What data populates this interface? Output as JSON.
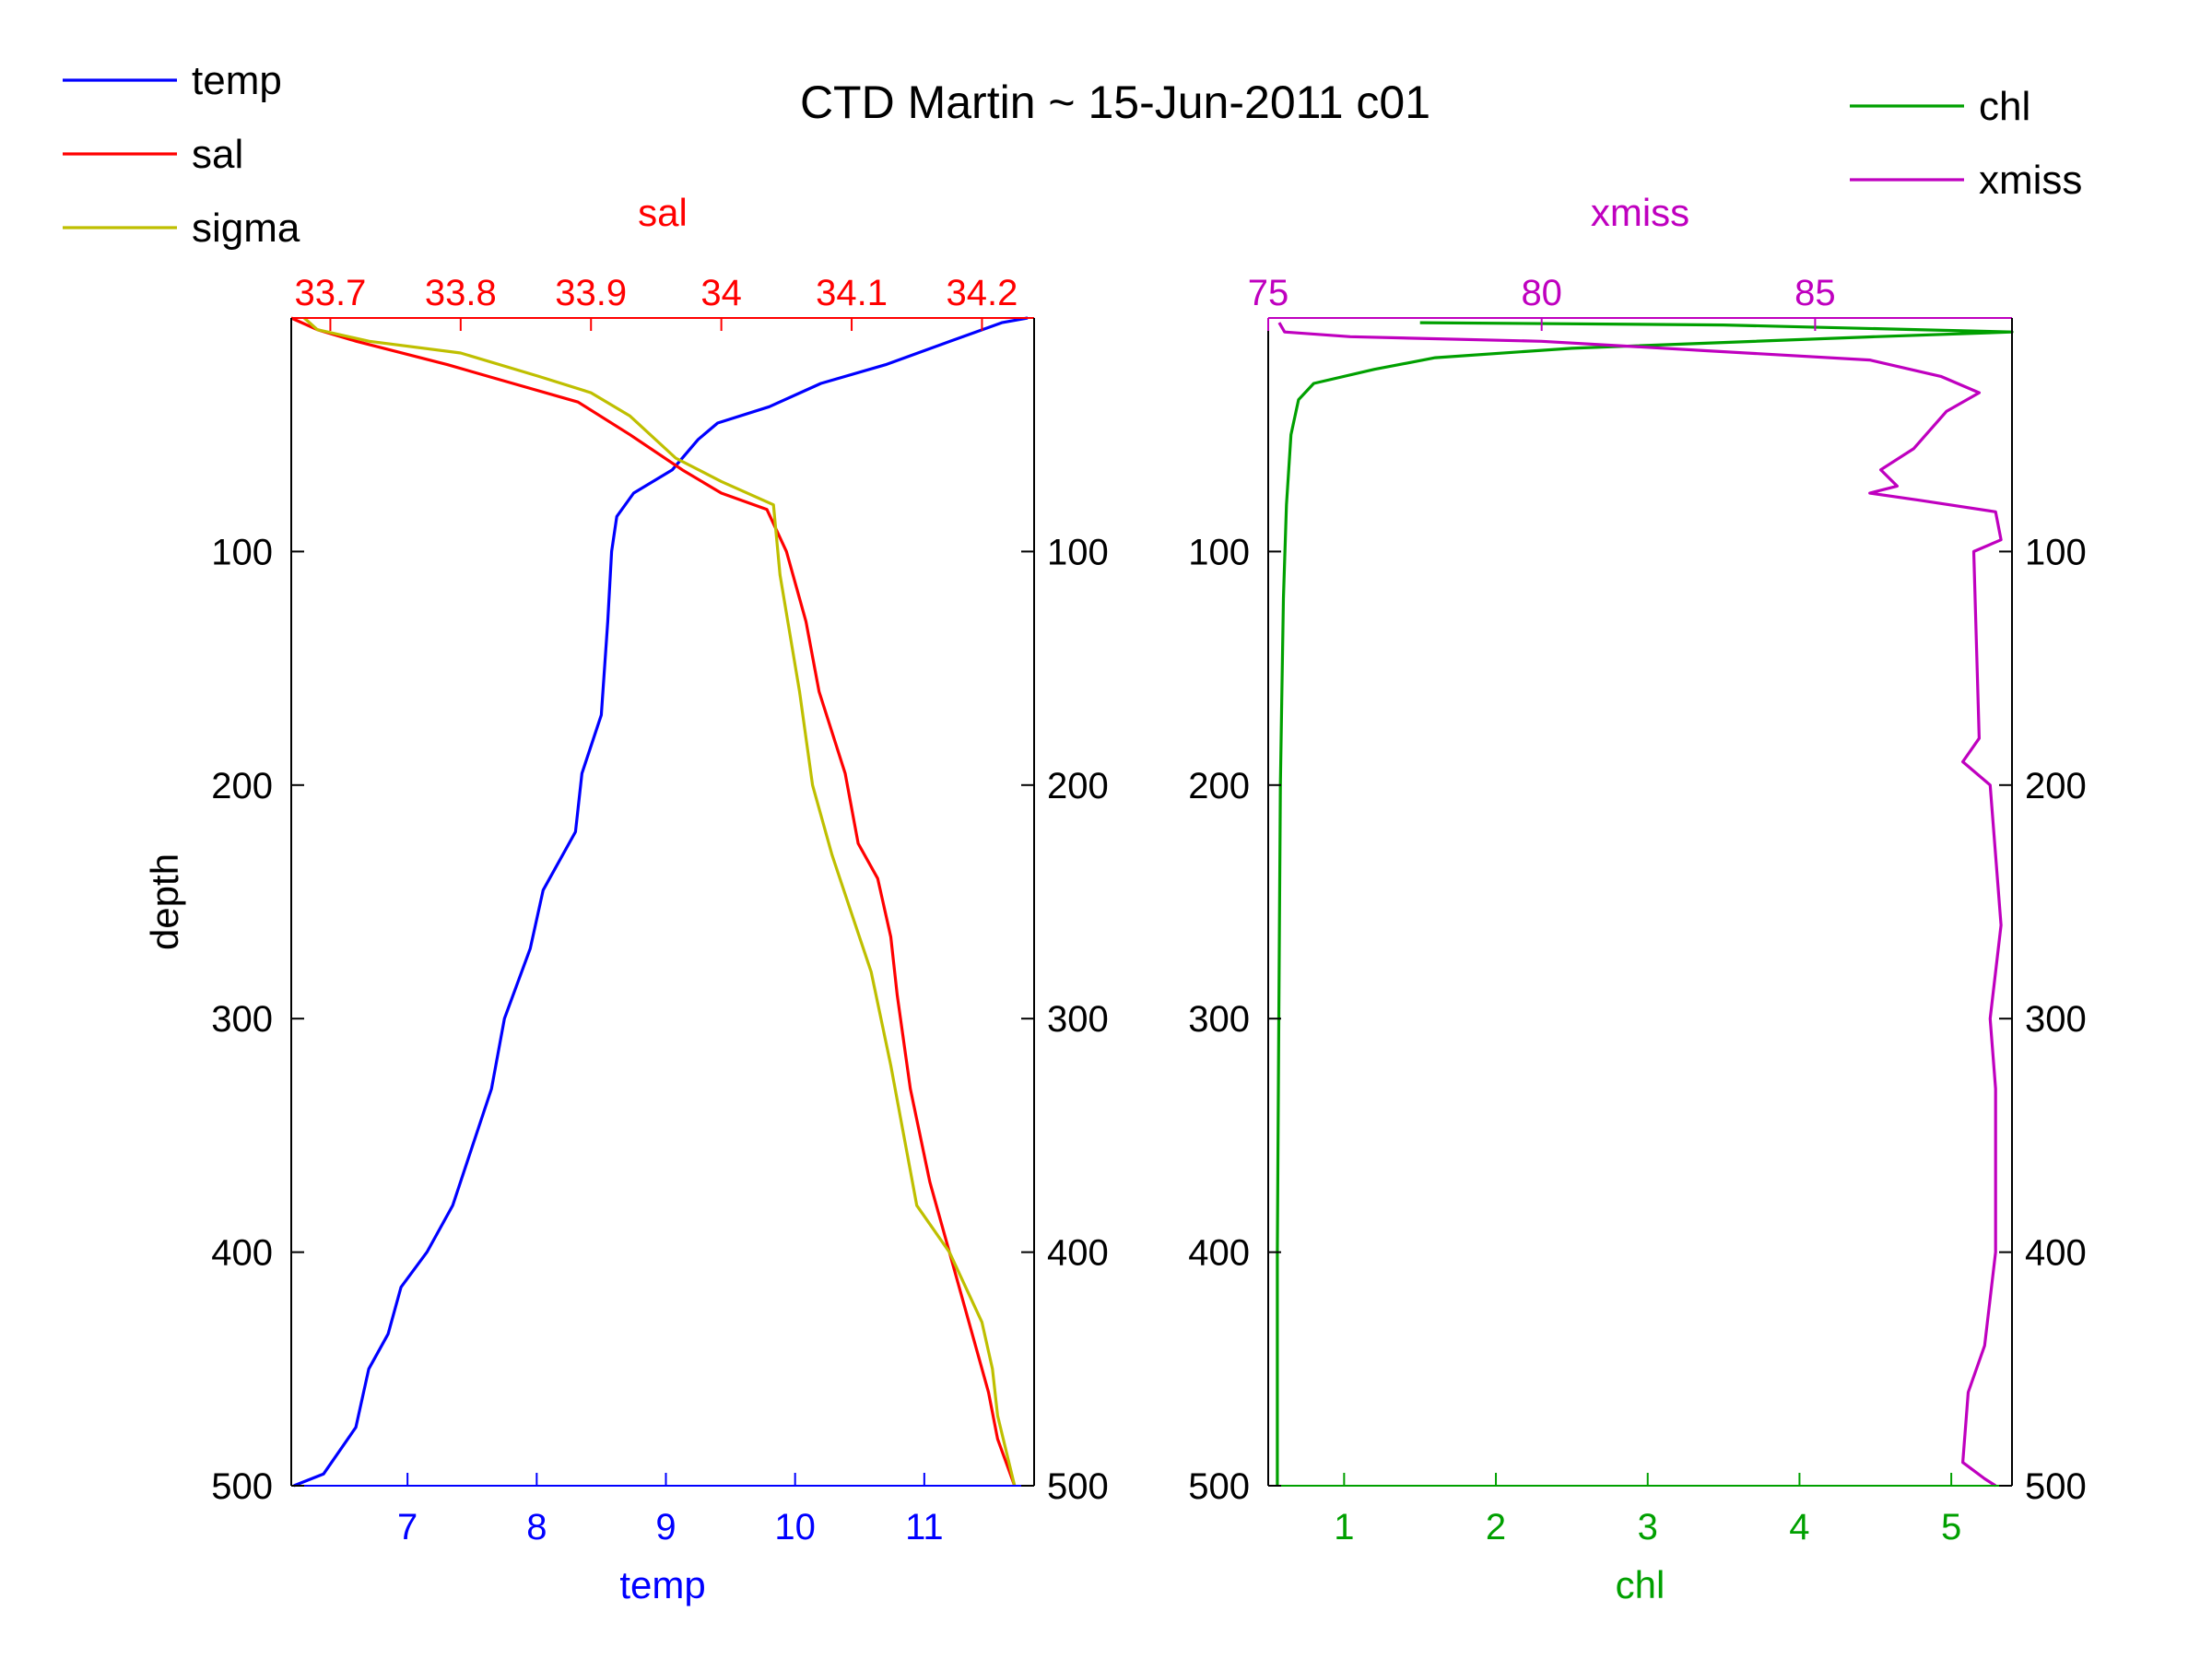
{
  "title": "CTD Martin ~ 15-Jun-2011 c01",
  "colors": {
    "temp": "#0000ff",
    "sal": "#ff0000",
    "sigma": "#bfbf00",
    "chl": "#00a000",
    "xmiss": "#bf00bf",
    "axis": "#000000"
  },
  "legend_left": [
    {
      "key": "temp",
      "label": "temp"
    },
    {
      "key": "sal",
      "label": "sal"
    },
    {
      "key": "sigma",
      "label": "sigma"
    }
  ],
  "legend_right": [
    {
      "key": "chl",
      "label": "chl"
    },
    {
      "key": "xmiss",
      "label": "xmiss"
    }
  ],
  "chart_data": [
    {
      "type": "line",
      "title": "CTD Martin ~ 15-Jun-2011 c01",
      "ylabel": "depth",
      "ylim": [
        0,
        500
      ],
      "y_reversed": true,
      "yticks": [
        100,
        200,
        300,
        400,
        500
      ],
      "bottom_axis": {
        "label": "temp",
        "lim": [
          6.1,
          11.85
        ],
        "ticks": [
          7,
          8,
          9,
          10,
          11
        ]
      },
      "top_axis": {
        "label": "sal",
        "lim": [
          33.67,
          34.24
        ],
        "ticks": [
          33.7,
          33.8,
          33.9,
          34,
          34.1,
          34.2
        ]
      },
      "series": [
        {
          "name": "temp",
          "axis": "bottom",
          "points": [
            [
              11.8,
              0
            ],
            [
              11.6,
              2
            ],
            [
              11.2,
              10
            ],
            [
              10.7,
              20
            ],
            [
              10.2,
              28
            ],
            [
              9.8,
              38
            ],
            [
              9.4,
              45
            ],
            [
              9.25,
              52
            ],
            [
              9.05,
              65
            ],
            [
              8.75,
              75
            ],
            [
              8.62,
              85
            ],
            [
              8.58,
              100
            ],
            [
              8.55,
              130
            ],
            [
              8.5,
              170
            ],
            [
              8.35,
              195
            ],
            [
              8.3,
              220
            ],
            [
              8.05,
              245
            ],
            [
              7.95,
              270
            ],
            [
              7.75,
              300
            ],
            [
              7.65,
              330
            ],
            [
              7.5,
              355
            ],
            [
              7.35,
              380
            ],
            [
              7.15,
              400
            ],
            [
              6.95,
              415
            ],
            [
              6.85,
              435
            ],
            [
              6.7,
              450
            ],
            [
              6.6,
              475
            ],
            [
              6.35,
              495
            ],
            [
              6.12,
              500
            ]
          ]
        },
        {
          "name": "sal",
          "axis": "top",
          "points": [
            [
              33.67,
              0
            ],
            [
              33.69,
              5
            ],
            [
              33.72,
              10
            ],
            [
              33.79,
              20
            ],
            [
              33.84,
              28
            ],
            [
              33.89,
              36
            ],
            [
              33.93,
              50
            ],
            [
              33.97,
              65
            ],
            [
              34.0,
              75
            ],
            [
              34.035,
              82
            ],
            [
              34.05,
              100
            ],
            [
              34.065,
              130
            ],
            [
              34.075,
              160
            ],
            [
              34.095,
              195
            ],
            [
              34.105,
              225
            ],
            [
              34.12,
              240
            ],
            [
              34.13,
              265
            ],
            [
              34.135,
              290
            ],
            [
              34.145,
              330
            ],
            [
              34.16,
              370
            ],
            [
              34.175,
              400
            ],
            [
              34.19,
              430
            ],
            [
              34.205,
              460
            ],
            [
              34.212,
              480
            ],
            [
              34.225,
              500
            ]
          ]
        },
        {
          "name": "sigma",
          "axis": "top",
          "points": [
            [
              33.68,
              0
            ],
            [
              33.69,
              5
            ],
            [
              33.73,
              10
            ],
            [
              33.8,
              15
            ],
            [
              33.86,
              25
            ],
            [
              33.9,
              32
            ],
            [
              33.93,
              42
            ],
            [
              33.965,
              60
            ],
            [
              34.0,
              70
            ],
            [
              34.04,
              80
            ],
            [
              34.045,
              110
            ],
            [
              34.06,
              160
            ],
            [
              34.07,
              200
            ],
            [
              34.085,
              230
            ],
            [
              34.1,
              255
            ],
            [
              34.115,
              280
            ],
            [
              34.13,
              320
            ],
            [
              34.14,
              350
            ],
            [
              34.15,
              380
            ],
            [
              34.175,
              400
            ],
            [
              34.2,
              430
            ],
            [
              34.208,
              450
            ],
            [
              34.212,
              470
            ],
            [
              34.225,
              500
            ]
          ]
        }
      ]
    },
    {
      "type": "line",
      "ylabel": "",
      "ylim": [
        0,
        500
      ],
      "y_reversed": true,
      "yticks": [
        100,
        200,
        300,
        400,
        500
      ],
      "bottom_axis": {
        "label": "chl",
        "lim": [
          0.5,
          5.4
        ],
        "ticks": [
          1,
          2,
          3,
          4,
          5
        ]
      },
      "top_axis": {
        "label": "xmiss",
        "lim": [
          75,
          88.6
        ],
        "ticks": [
          75,
          80,
          85
        ]
      },
      "series": [
        {
          "name": "chl",
          "axis": "bottom",
          "points": [
            [
              1.5,
              2
            ],
            [
              3.5,
              3
            ],
            [
              5.4,
              6
            ],
            [
              4.5,
              8
            ],
            [
              2.5,
              13
            ],
            [
              1.6,
              17
            ],
            [
              1.2,
              22
            ],
            [
              0.8,
              28
            ],
            [
              0.7,
              35
            ],
            [
              0.65,
              50
            ],
            [
              0.62,
              80
            ],
            [
              0.6,
              120
            ],
            [
              0.58,
              200
            ],
            [
              0.57,
              300
            ],
            [
              0.56,
              400
            ],
            [
              0.56,
              500
            ]
          ]
        },
        {
          "name": "xmiss",
          "axis": "top",
          "points": [
            [
              75.2,
              2
            ],
            [
              75.3,
              6
            ],
            [
              76.5,
              8
            ],
            [
              80.0,
              10
            ],
            [
              83.0,
              14
            ],
            [
              86.0,
              18
            ],
            [
              87.3,
              25
            ],
            [
              88.0,
              32
            ],
            [
              87.4,
              40
            ],
            [
              86.8,
              56
            ],
            [
              86.2,
              65
            ],
            [
              86.5,
              72
            ],
            [
              86.0,
              75
            ],
            [
              86.9,
              78
            ],
            [
              88.3,
              83
            ],
            [
              88.4,
              95
            ],
            [
              87.9,
              100
            ],
            [
              88.0,
              180
            ],
            [
              87.7,
              190
            ],
            [
              88.2,
              200
            ],
            [
              88.4,
              260
            ],
            [
              88.2,
              300
            ],
            [
              88.3,
              330
            ],
            [
              88.3,
              400
            ],
            [
              88.1,
              440
            ],
            [
              87.8,
              460
            ],
            [
              87.7,
              490
            ],
            [
              88.1,
              497
            ],
            [
              88.3,
              500
            ]
          ]
        }
      ]
    }
  ]
}
